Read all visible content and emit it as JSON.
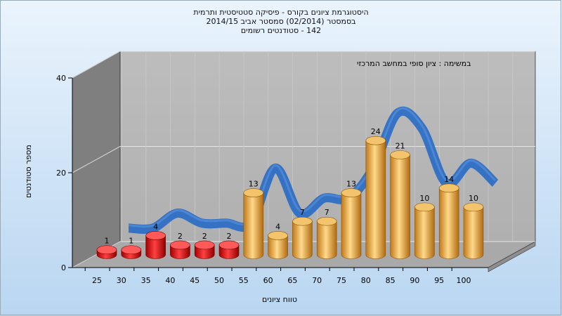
{
  "header": {
    "line1": "היסטוגרמת ציונים בקורס - פיסיקה סטטיסטית ותרמית",
    "line2": "בסמסטר  (02/2014)  סמסטר אביב 2014/15",
    "line3": "142 - סטודנטים רשומים"
  },
  "chart_data": {
    "type": "bar",
    "annotation": "במשימה : ציון סופי במחשב המרכזי",
    "xlabel": "טווח ציונים",
    "ylabel": "מספר סטודנטים",
    "ylim": [
      0,
      40
    ],
    "yticks": [
      "0",
      "20",
      "40"
    ],
    "categories": [
      "25",
      "30",
      "35",
      "40",
      "45",
      "50",
      "55",
      "60",
      "65",
      "70",
      "75",
      "80",
      "85",
      "90",
      "95",
      "100"
    ],
    "values": [
      1,
      1,
      4,
      2,
      2,
      2,
      13,
      4,
      7,
      7,
      13,
      24,
      21,
      10,
      14,
      10
    ],
    "fail_threshold": 55,
    "colors": {
      "fail": "#e01010",
      "pass": "#e0a040",
      "curve": "#2f6fc4",
      "back_wall": "#b8b8b8",
      "side_wall": "#7a7a7a",
      "floor": "#a8a8a8"
    }
  }
}
